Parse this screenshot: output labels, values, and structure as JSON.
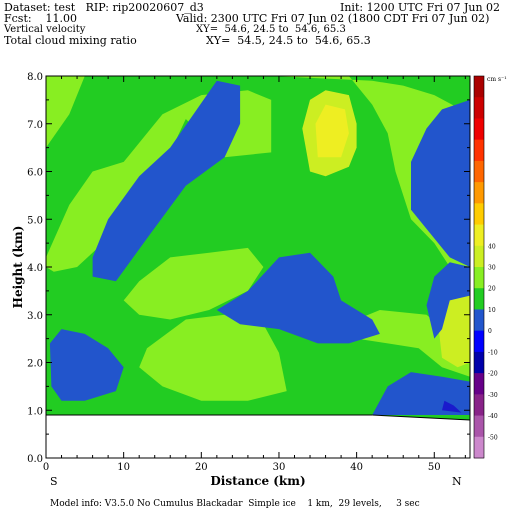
{
  "header": {
    "dataset": "Dataset: test   RIP: rip20020607_d3",
    "init": "Init: 1200 UTC Fri 07 Jun 02",
    "fcst": "Fcst:    11.00",
    "valid": "Valid: 2300 UTC Fri 07 Jun 02 (1800 CDT Fri 07 Jun 02)",
    "field1": "Vertical velocity",
    "xy1": "XY=  54.6, 24.5 to  54.6, 65.3",
    "field2": "Total cloud mixing ratio",
    "xy2": "XY=  54.5, 24.5 to  54.6, 65.3"
  },
  "footer": {
    "model_info": "Model info: V3.5.0 No Cumulus Blackadar  Simple ice    1 km,  29 levels,     3 sec"
  },
  "endpoints": {
    "left": "S",
    "right": "N"
  },
  "colors": {
    "green": "#22cc22",
    "light_green": "#88ee22",
    "yellow_green": "#ccee22",
    "yellow": "#eeee22",
    "blue": "#2255cc",
    "dark_blue": "#1a1acc"
  },
  "chart_data": {
    "type": "heatmap",
    "xlabel": "Distance (km)",
    "ylabel": "Height (km)",
    "xlim": [
      0,
      54.6
    ],
    "ylim": [
      0.0,
      8.0
    ],
    "xticks": [
      0,
      10,
      20,
      30,
      40,
      50
    ],
    "yticks": [
      "0.0",
      "1.0",
      "2.0",
      "3.0",
      "4.0",
      "5.0",
      "6.0",
      "7.0",
      "8.0"
    ],
    "terrain_top_km": 0.9,
    "colorbar": {
      "units": "cm s⁻¹",
      "labels": [
        "-50",
        "-40",
        "-30",
        "-20",
        "-10",
        "0",
        "10",
        "20",
        "30",
        "40"
      ],
      "colors": [
        "#cc88cc",
        "#aa55aa",
        "#882288",
        "#660088",
        "#0000aa",
        "#0000ff",
        "#2255cc",
        "#22cc22",
        "#88ee22",
        "#ccee22",
        "#eeee22",
        "#ffcc00",
        "#ff9900",
        "#ff6600",
        "#ff3300",
        "#ee0000",
        "#cc0000",
        "#aa0000"
      ]
    },
    "regions": [
      {
        "level": "light_green",
        "label": "upper-left",
        "points": [
          [
            0,
            6.5
          ],
          [
            3,
            7.2
          ],
          [
            5,
            8.0
          ],
          [
            0,
            8.0
          ]
        ]
      },
      {
        "level": "light_green",
        "label": "upper-left-band",
        "points": [
          [
            0,
            4.2
          ],
          [
            3,
            5.3
          ],
          [
            6,
            6.0
          ],
          [
            10,
            6.2
          ],
          [
            15,
            7.2
          ],
          [
            20,
            7.6
          ],
          [
            26,
            7.7
          ],
          [
            29,
            7.5
          ],
          [
            29,
            6.4
          ],
          [
            23,
            6.3
          ],
          [
            18,
            7.1
          ],
          [
            16,
            6.4
          ],
          [
            14,
            5.5
          ],
          [
            12,
            5.0
          ],
          [
            8,
            4.6
          ],
          [
            4,
            4.0
          ],
          [
            1,
            3.9
          ],
          [
            0,
            4.0
          ]
        ]
      },
      {
        "level": "light_green",
        "label": "upper-mid",
        "points": [
          [
            29,
            8.0
          ],
          [
            39,
            8.0
          ],
          [
            42,
            7.4
          ],
          [
            44,
            6.8
          ],
          [
            45,
            6.0
          ],
          [
            47,
            5.0
          ],
          [
            50,
            4.5
          ],
          [
            52,
            4.0
          ],
          [
            54.6,
            3.8
          ],
          [
            54.6,
            7.2
          ],
          [
            50,
            7.6
          ],
          [
            46,
            7.8
          ],
          [
            42,
            7.9
          ]
        ]
      },
      {
        "level": "light_green",
        "label": "mid-left",
        "points": [
          [
            12,
            3.7
          ],
          [
            16,
            4.2
          ],
          [
            21,
            4.3
          ],
          [
            26,
            4.4
          ],
          [
            28,
            4.0
          ],
          [
            26,
            3.5
          ],
          [
            21,
            3.1
          ],
          [
            16,
            2.9
          ],
          [
            12,
            3.0
          ],
          [
            10,
            3.3
          ]
        ]
      },
      {
        "level": "light_green",
        "label": "lower-right-1",
        "points": [
          [
            37,
            2.7
          ],
          [
            43,
            3.1
          ],
          [
            49,
            3.0
          ],
          [
            52,
            2.6
          ],
          [
            54.6,
            2.5
          ],
          [
            54.6,
            1.7
          ],
          [
            51,
            1.9
          ],
          [
            48,
            2.3
          ],
          [
            44,
            2.4
          ],
          [
            40,
            2.5
          ]
        ]
      },
      {
        "level": "light_green",
        "label": "lower-mid",
        "points": [
          [
            13,
            2.3
          ],
          [
            18,
            2.9
          ],
          [
            23,
            3.0
          ],
          [
            28,
            2.8
          ],
          [
            30,
            2.2
          ],
          [
            31,
            1.4
          ],
          [
            26,
            1.2
          ],
          [
            20,
            1.2
          ],
          [
            15,
            1.5
          ],
          [
            12,
            1.9
          ]
        ]
      },
      {
        "level": "light_green",
        "label": "upper-right-green",
        "points": [
          [
            46,
            6.2
          ],
          [
            49,
            6.8
          ],
          [
            52,
            7.1
          ],
          [
            54.6,
            7.4
          ],
          [
            54.6,
            6.2
          ],
          [
            51,
            6.0
          ],
          [
            48,
            5.8
          ]
        ]
      },
      {
        "level": "yellow_green",
        "label": "top-cell",
        "points": [
          [
            34,
            6.0
          ],
          [
            33,
            6.9
          ],
          [
            34,
            7.5
          ],
          [
            36,
            7.7
          ],
          [
            39,
            7.6
          ],
          [
            40,
            7.0
          ],
          [
            40,
            6.5
          ],
          [
            39,
            6.1
          ],
          [
            36,
            5.9
          ]
        ]
      },
      {
        "level": "yellow",
        "label": "top-cell-core",
        "points": [
          [
            35,
            6.3
          ],
          [
            34.7,
            7.0
          ],
          [
            36,
            7.4
          ],
          [
            38.5,
            7.3
          ],
          [
            39,
            6.8
          ],
          [
            38,
            6.3
          ]
        ]
      },
      {
        "level": "yellow_green",
        "label": "right-edge-cell",
        "points": [
          [
            51,
            2.1
          ],
          [
            50.5,
            2.8
          ],
          [
            52,
            3.4
          ],
          [
            54.6,
            3.5
          ],
          [
            54.6,
            2.0
          ],
          [
            53,
            1.9
          ]
        ]
      },
      {
        "level": "blue",
        "label": "upper-diagonal",
        "points": [
          [
            9,
            3.7
          ],
          [
            13,
            4.6
          ],
          [
            18,
            5.7
          ],
          [
            23,
            6.3
          ],
          [
            25,
            7.0
          ],
          [
            25,
            7.8
          ],
          [
            22,
            7.9
          ],
          [
            19,
            7.2
          ],
          [
            16,
            6.5
          ],
          [
            12,
            5.9
          ],
          [
            8,
            5.0
          ],
          [
            6,
            4.2
          ],
          [
            6,
            3.8
          ]
        ]
      },
      {
        "level": "blue",
        "label": "center",
        "points": [
          [
            22,
            3.1
          ],
          [
            26,
            3.5
          ],
          [
            30,
            4.2
          ],
          [
            34,
            4.3
          ],
          [
            37,
            3.8
          ],
          [
            38,
            3.3
          ],
          [
            42,
            2.9
          ],
          [
            43,
            2.6
          ],
          [
            39,
            2.4
          ],
          [
            35,
            2.4
          ],
          [
            30,
            2.7
          ],
          [
            25,
            2.8
          ]
        ]
      },
      {
        "level": "blue",
        "label": "left-lower",
        "points": [
          [
            0.7,
            1.5
          ],
          [
            0.5,
            2.4
          ],
          [
            2,
            2.7
          ],
          [
            5,
            2.6
          ],
          [
            8,
            2.3
          ],
          [
            10,
            1.9
          ],
          [
            9,
            1.4
          ],
          [
            5,
            1.2
          ],
          [
            2,
            1.2
          ]
        ]
      },
      {
        "level": "blue",
        "label": "right-upper",
        "points": [
          [
            47,
            5.2
          ],
          [
            47,
            6.2
          ],
          [
            49,
            6.9
          ],
          [
            51,
            7.3
          ],
          [
            54.6,
            7.5
          ],
          [
            54.6,
            4.0
          ],
          [
            52,
            4.2
          ],
          [
            50,
            4.6
          ]
        ]
      },
      {
        "level": "blue",
        "label": "right-mid",
        "points": [
          [
            50,
            2.5
          ],
          [
            49,
            3.2
          ],
          [
            50,
            3.8
          ],
          [
            52,
            4.1
          ],
          [
            54.6,
            4.0
          ],
          [
            54.6,
            3.4
          ],
          [
            52,
            3.3
          ],
          [
            51,
            2.7
          ]
        ]
      },
      {
        "level": "blue",
        "label": "bottom-right",
        "points": [
          [
            42,
            0.9
          ],
          [
            44,
            1.5
          ],
          [
            47,
            1.8
          ],
          [
            51,
            1.7
          ],
          [
            54.6,
            1.6
          ],
          [
            54.6,
            0.9
          ]
        ]
      },
      {
        "level": "dark_blue",
        "label": "bottom-right-core",
        "points": [
          [
            51,
            1.0
          ],
          [
            51.3,
            1.2
          ],
          [
            52.5,
            1.1
          ],
          [
            53.5,
            0.95
          ]
        ]
      }
    ]
  }
}
